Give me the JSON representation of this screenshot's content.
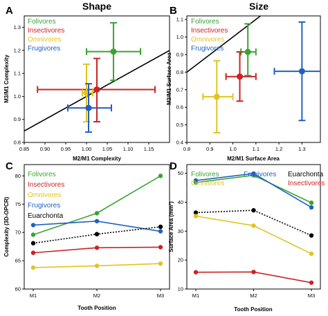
{
  "chart_data": [
    {
      "panel": "A",
      "title": "Shape",
      "type": "scatter",
      "xlabel": "M2/M1 Complexity",
      "ylabel": "M3/M1 Complexity",
      "xlim": [
        0.85,
        1.2
      ],
      "ylim": [
        0.8,
        1.35
      ],
      "xticks": [
        "0.85",
        "0.90",
        "0.95",
        "1.00",
        "1.05",
        "1.10",
        "1.15"
      ],
      "yticks": [
        "0.8",
        "0.9",
        "1.0",
        "1.1",
        "1.2",
        "1.3"
      ],
      "reference_line": "y = x",
      "legend": [
        "Folivores",
        "Insectivores",
        "Omnivores",
        "Frugivores"
      ],
      "series": [
        {
          "name": "Folivores",
          "color": "#3aa335",
          "x": 1.065,
          "y": 1.195,
          "xerr": [
            1.0,
            1.13
          ],
          "yerr": [
            1.07,
            1.32
          ]
        },
        {
          "name": "Insectivores",
          "color": "#cc2222",
          "x": 1.025,
          "y": 1.03,
          "xerr": [
            0.882,
            1.165
          ],
          "yerr": [
            0.89,
            1.165
          ]
        },
        {
          "name": "Omnivores",
          "color": "#e0c420",
          "x": 1.0,
          "y": 1.015,
          "xerr": [
            0.99,
            1.015
          ],
          "yerr": [
            0.89,
            1.14
          ]
        },
        {
          "name": "Frugivores",
          "color": "#2060c0",
          "x": 1.005,
          "y": 0.95,
          "xerr": [
            0.955,
            1.06
          ],
          "yerr": [
            0.845,
            1.055
          ]
        }
      ]
    },
    {
      "panel": "B",
      "title": "Size",
      "type": "scatter",
      "xlabel": "M2/M1 Surface Area",
      "ylabel": "M3/M1 Surface Area",
      "xlim": [
        0.8,
        1.38
      ],
      "ylim": [
        0.4,
        1.12
      ],
      "xticks": [
        "0.8",
        "0.9",
        "1.0",
        "1.1",
        "1.2",
        "1.3"
      ],
      "yticks": [
        "0.4",
        "0.5",
        "0.6",
        "0.7",
        "0.8",
        "0.9",
        "1.0",
        "1.1"
      ],
      "reference_line": "y = x",
      "legend": [
        "Folivores",
        "Insectivores",
        "Omnivores",
        "Frugivores"
      ],
      "series": [
        {
          "name": "Folivores",
          "color": "#3aa335",
          "x": 1.065,
          "y": 0.915,
          "xerr": [
            1.035,
            1.1
          ],
          "yerr": [
            0.78,
            1.075
          ]
        },
        {
          "name": "Insectivores",
          "color": "#cc2222",
          "x": 1.03,
          "y": 0.775,
          "xerr": [
            0.97,
            1.1
          ],
          "yerr": [
            0.635,
            0.915
          ]
        },
        {
          "name": "Omnivores",
          "color": "#e0c420",
          "x": 0.93,
          "y": 0.66,
          "xerr": [
            0.87,
            1.0
          ],
          "yerr": [
            0.455,
            0.865
          ]
        },
        {
          "name": "Frugivores",
          "color": "#2060c0",
          "x": 1.3,
          "y": 0.805,
          "xerr": [
            1.18,
            1.42
          ],
          "yerr": [
            0.525,
            1.085
          ]
        }
      ]
    },
    {
      "panel": "C",
      "type": "line",
      "xlabel": "Tooth Position",
      "ylabel": "Complexity (3D-OPCR)",
      "categories": [
        "M1",
        "M2",
        "M3"
      ],
      "ylim": [
        60,
        82
      ],
      "yticks": [
        "60",
        "65",
        "70",
        "75",
        "80"
      ],
      "legend": [
        "Folivores",
        "Insectivores",
        "Omnivores",
        "Frugivores",
        "Euarchonta"
      ],
      "series": [
        {
          "name": "Folivores",
          "color": "#3aa335",
          "values": [
            69.6,
            73.4,
            80.0
          ]
        },
        {
          "name": "Insectivores",
          "color": "#cc2222",
          "values": [
            66.4,
            67.3,
            67.4
          ]
        },
        {
          "name": "Omnivores",
          "color": "#e0c420",
          "values": [
            63.8,
            64.1,
            64.5
          ]
        },
        {
          "name": "Frugivores",
          "color": "#2060c0",
          "values": [
            71.3,
            72.0,
            70.2
          ]
        },
        {
          "name": "Euarchonta",
          "color": "#000000",
          "dashed": true,
          "values": [
            68.1,
            69.7,
            71.0
          ]
        }
      ]
    },
    {
      "panel": "D",
      "type": "line",
      "xlabel": "Tooth Position",
      "ylabel": "Surface Area (mm²)",
      "categories": [
        "M1",
        "M2",
        "M3"
      ],
      "ylim": [
        10,
        53
      ],
      "yticks": [
        "10",
        "20",
        "30",
        "40",
        "50"
      ],
      "legend": [
        "Folivores",
        "Frugivores",
        "Euarchonta",
        "Omnivores",
        "Insectivores"
      ],
      "series": [
        {
          "name": "Folivores",
          "color": "#3aa335",
          "values": [
            46.8,
            49.3,
            39.8
          ]
        },
        {
          "name": "Frugivores",
          "color": "#2060c0",
          "values": [
            47.5,
            49.9,
            38.2
          ]
        },
        {
          "name": "Euarchonta",
          "color": "#000000",
          "dashed": true,
          "values": [
            36.4,
            37.2,
            28.5
          ]
        },
        {
          "name": "Omnivores",
          "color": "#e0c420",
          "values": [
            35.2,
            31.9,
            22.2
          ]
        },
        {
          "name": "Insectivores",
          "color": "#cc2222",
          "values": [
            15.8,
            15.9,
            12.2
          ]
        }
      ]
    }
  ]
}
